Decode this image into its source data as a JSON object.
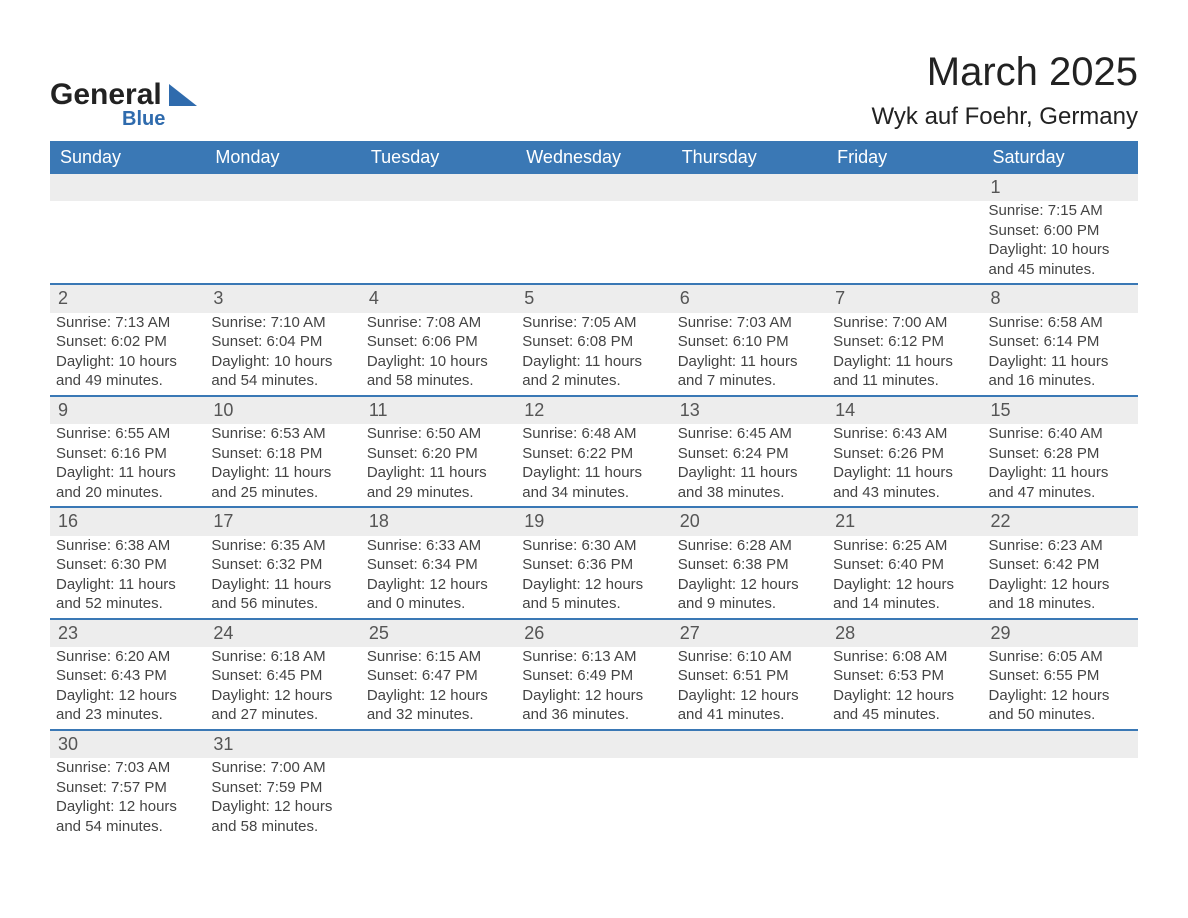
{
  "brand": {
    "name": "General",
    "sub": "Blue"
  },
  "title": "March 2025",
  "location": "Wyk auf Foehr, Germany",
  "colors": {
    "header_bg": "#3a78b5",
    "header_text": "#ffffff",
    "daynum_bg": "#ededed",
    "row_divider": "#3a78b5",
    "body_text": "#444444",
    "page_bg": "#ffffff"
  },
  "typography": {
    "title_fontsize": 40,
    "location_fontsize": 24,
    "header_fontsize": 18,
    "daynum_fontsize": 18,
    "cell_fontsize": 15
  },
  "weekdays": [
    "Sunday",
    "Monday",
    "Tuesday",
    "Wednesday",
    "Thursday",
    "Friday",
    "Saturday"
  ],
  "weeks": [
    [
      null,
      null,
      null,
      null,
      null,
      null,
      {
        "n": "1",
        "sunrise": "Sunrise: 7:15 AM",
        "sunset": "Sunset: 6:00 PM",
        "day1": "Daylight: 10 hours",
        "day2": "and 45 minutes."
      }
    ],
    [
      {
        "n": "2",
        "sunrise": "Sunrise: 7:13 AM",
        "sunset": "Sunset: 6:02 PM",
        "day1": "Daylight: 10 hours",
        "day2": "and 49 minutes."
      },
      {
        "n": "3",
        "sunrise": "Sunrise: 7:10 AM",
        "sunset": "Sunset: 6:04 PM",
        "day1": "Daylight: 10 hours",
        "day2": "and 54 minutes."
      },
      {
        "n": "4",
        "sunrise": "Sunrise: 7:08 AM",
        "sunset": "Sunset: 6:06 PM",
        "day1": "Daylight: 10 hours",
        "day2": "and 58 minutes."
      },
      {
        "n": "5",
        "sunrise": "Sunrise: 7:05 AM",
        "sunset": "Sunset: 6:08 PM",
        "day1": "Daylight: 11 hours",
        "day2": "and 2 minutes."
      },
      {
        "n": "6",
        "sunrise": "Sunrise: 7:03 AM",
        "sunset": "Sunset: 6:10 PM",
        "day1": "Daylight: 11 hours",
        "day2": "and 7 minutes."
      },
      {
        "n": "7",
        "sunrise": "Sunrise: 7:00 AM",
        "sunset": "Sunset: 6:12 PM",
        "day1": "Daylight: 11 hours",
        "day2": "and 11 minutes."
      },
      {
        "n": "8",
        "sunrise": "Sunrise: 6:58 AM",
        "sunset": "Sunset: 6:14 PM",
        "day1": "Daylight: 11 hours",
        "day2": "and 16 minutes."
      }
    ],
    [
      {
        "n": "9",
        "sunrise": "Sunrise: 6:55 AM",
        "sunset": "Sunset: 6:16 PM",
        "day1": "Daylight: 11 hours",
        "day2": "and 20 minutes."
      },
      {
        "n": "10",
        "sunrise": "Sunrise: 6:53 AM",
        "sunset": "Sunset: 6:18 PM",
        "day1": "Daylight: 11 hours",
        "day2": "and 25 minutes."
      },
      {
        "n": "11",
        "sunrise": "Sunrise: 6:50 AM",
        "sunset": "Sunset: 6:20 PM",
        "day1": "Daylight: 11 hours",
        "day2": "and 29 minutes."
      },
      {
        "n": "12",
        "sunrise": "Sunrise: 6:48 AM",
        "sunset": "Sunset: 6:22 PM",
        "day1": "Daylight: 11 hours",
        "day2": "and 34 minutes."
      },
      {
        "n": "13",
        "sunrise": "Sunrise: 6:45 AM",
        "sunset": "Sunset: 6:24 PM",
        "day1": "Daylight: 11 hours",
        "day2": "and 38 minutes."
      },
      {
        "n": "14",
        "sunrise": "Sunrise: 6:43 AM",
        "sunset": "Sunset: 6:26 PM",
        "day1": "Daylight: 11 hours",
        "day2": "and 43 minutes."
      },
      {
        "n": "15",
        "sunrise": "Sunrise: 6:40 AM",
        "sunset": "Sunset: 6:28 PM",
        "day1": "Daylight: 11 hours",
        "day2": "and 47 minutes."
      }
    ],
    [
      {
        "n": "16",
        "sunrise": "Sunrise: 6:38 AM",
        "sunset": "Sunset: 6:30 PM",
        "day1": "Daylight: 11 hours",
        "day2": "and 52 minutes."
      },
      {
        "n": "17",
        "sunrise": "Sunrise: 6:35 AM",
        "sunset": "Sunset: 6:32 PM",
        "day1": "Daylight: 11 hours",
        "day2": "and 56 minutes."
      },
      {
        "n": "18",
        "sunrise": "Sunrise: 6:33 AM",
        "sunset": "Sunset: 6:34 PM",
        "day1": "Daylight: 12 hours",
        "day2": "and 0 minutes."
      },
      {
        "n": "19",
        "sunrise": "Sunrise: 6:30 AM",
        "sunset": "Sunset: 6:36 PM",
        "day1": "Daylight: 12 hours",
        "day2": "and 5 minutes."
      },
      {
        "n": "20",
        "sunrise": "Sunrise: 6:28 AM",
        "sunset": "Sunset: 6:38 PM",
        "day1": "Daylight: 12 hours",
        "day2": "and 9 minutes."
      },
      {
        "n": "21",
        "sunrise": "Sunrise: 6:25 AM",
        "sunset": "Sunset: 6:40 PM",
        "day1": "Daylight: 12 hours",
        "day2": "and 14 minutes."
      },
      {
        "n": "22",
        "sunrise": "Sunrise: 6:23 AM",
        "sunset": "Sunset: 6:42 PM",
        "day1": "Daylight: 12 hours",
        "day2": "and 18 minutes."
      }
    ],
    [
      {
        "n": "23",
        "sunrise": "Sunrise: 6:20 AM",
        "sunset": "Sunset: 6:43 PM",
        "day1": "Daylight: 12 hours",
        "day2": "and 23 minutes."
      },
      {
        "n": "24",
        "sunrise": "Sunrise: 6:18 AM",
        "sunset": "Sunset: 6:45 PM",
        "day1": "Daylight: 12 hours",
        "day2": "and 27 minutes."
      },
      {
        "n": "25",
        "sunrise": "Sunrise: 6:15 AM",
        "sunset": "Sunset: 6:47 PM",
        "day1": "Daylight: 12 hours",
        "day2": "and 32 minutes."
      },
      {
        "n": "26",
        "sunrise": "Sunrise: 6:13 AM",
        "sunset": "Sunset: 6:49 PM",
        "day1": "Daylight: 12 hours",
        "day2": "and 36 minutes."
      },
      {
        "n": "27",
        "sunrise": "Sunrise: 6:10 AM",
        "sunset": "Sunset: 6:51 PM",
        "day1": "Daylight: 12 hours",
        "day2": "and 41 minutes."
      },
      {
        "n": "28",
        "sunrise": "Sunrise: 6:08 AM",
        "sunset": "Sunset: 6:53 PM",
        "day1": "Daylight: 12 hours",
        "day2": "and 45 minutes."
      },
      {
        "n": "29",
        "sunrise": "Sunrise: 6:05 AM",
        "sunset": "Sunset: 6:55 PM",
        "day1": "Daylight: 12 hours",
        "day2": "and 50 minutes."
      }
    ],
    [
      {
        "n": "30",
        "sunrise": "Sunrise: 7:03 AM",
        "sunset": "Sunset: 7:57 PM",
        "day1": "Daylight: 12 hours",
        "day2": "and 54 minutes."
      },
      {
        "n": "31",
        "sunrise": "Sunrise: 7:00 AM",
        "sunset": "Sunset: 7:59 PM",
        "day1": "Daylight: 12 hours",
        "day2": "and 58 minutes."
      },
      null,
      null,
      null,
      null,
      null
    ]
  ]
}
